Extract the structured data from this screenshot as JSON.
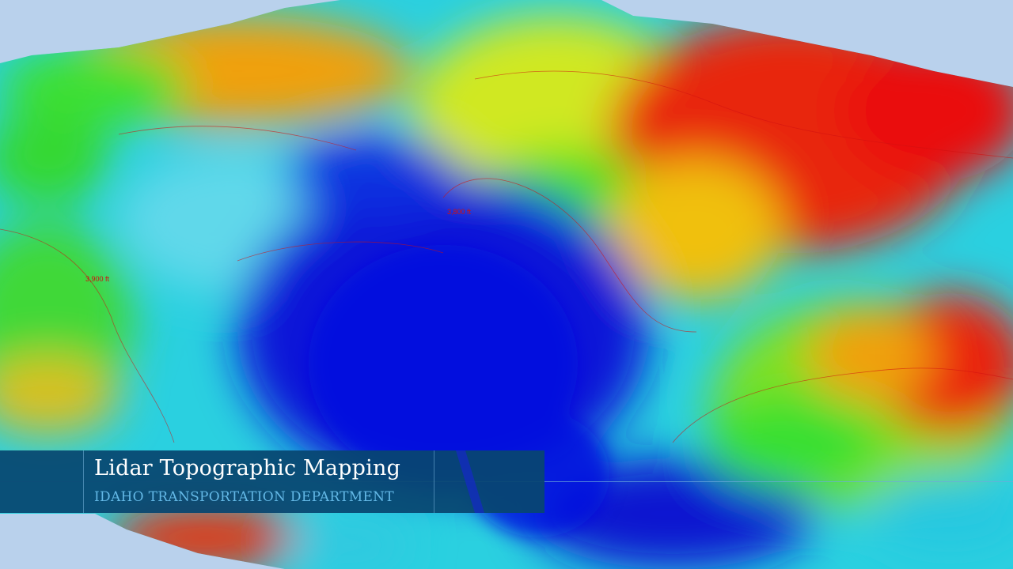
{
  "map": {
    "contour_labels": [
      "3,800 ft",
      "3,900 ft"
    ],
    "color_ramp": [
      "#0a14d8",
      "#1fb8e8",
      "#2ee22e",
      "#f2ee10",
      "#f07a10",
      "#e81010"
    ],
    "contour_color": "#d01010",
    "background_color": "#b9d1ec"
  },
  "lower_third": {
    "title": "Lidar Topographic Mapping",
    "subtitle": "IDAHO TRANSPORTATION DEPARTMENT",
    "bar_color": "#084670",
    "subtitle_color": "#63b8e6"
  }
}
